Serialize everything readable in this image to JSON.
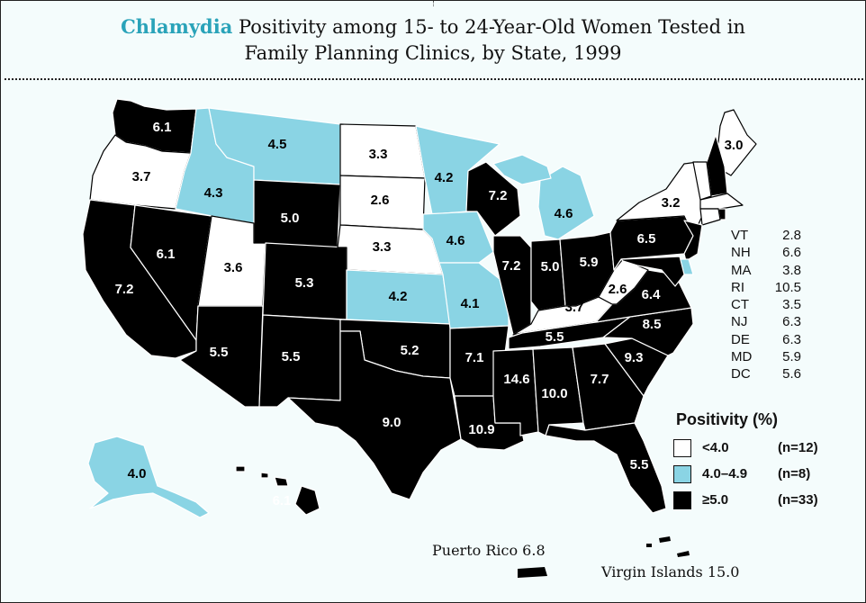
{
  "title": {
    "highlight": "Chlamydia",
    "line1_rest": " Positivity among 15- to 24-Year-Old Women Tested in",
    "line2": "Family Planning Clinics, by State, 1999"
  },
  "colors": {
    "low": "#ffffff",
    "mid": "#8ad4e4",
    "high": "#000000",
    "accent": "#2aa3b9",
    "background": "#f4fcfc"
  },
  "states": [
    {
      "id": "WA",
      "value": "6.1",
      "level": "high"
    },
    {
      "id": "OR",
      "value": "3.7",
      "level": "low"
    },
    {
      "id": "CA",
      "value": "7.2",
      "level": "high"
    },
    {
      "id": "NV",
      "value": "6.1",
      "level": "high"
    },
    {
      "id": "ID",
      "value": "4.3",
      "level": "mid"
    },
    {
      "id": "MT",
      "value": "4.5",
      "level": "mid"
    },
    {
      "id": "WY",
      "value": "5.0",
      "level": "high"
    },
    {
      "id": "UT",
      "value": "3.6",
      "level": "low"
    },
    {
      "id": "CO",
      "value": "5.3",
      "level": "high"
    },
    {
      "id": "AZ",
      "value": "5.5",
      "level": "high"
    },
    {
      "id": "NM",
      "value": "5.5",
      "level": "high"
    },
    {
      "id": "ND",
      "value": "3.3",
      "level": "low"
    },
    {
      "id": "SD",
      "value": "2.6",
      "level": "low"
    },
    {
      "id": "NE",
      "value": "3.3",
      "level": "low"
    },
    {
      "id": "KS",
      "value": "4.2",
      "level": "mid"
    },
    {
      "id": "OK",
      "value": "5.2",
      "level": "high"
    },
    {
      "id": "TX",
      "value": "9.0",
      "level": "high"
    },
    {
      "id": "MN",
      "value": "4.2",
      "level": "mid"
    },
    {
      "id": "IA",
      "value": "4.6",
      "level": "mid"
    },
    {
      "id": "MO",
      "value": "4.1",
      "level": "mid"
    },
    {
      "id": "AR",
      "value": "7.1",
      "level": "high"
    },
    {
      "id": "LA",
      "value": "10.9",
      "level": "high"
    },
    {
      "id": "WI",
      "value": "7.2",
      "level": "high"
    },
    {
      "id": "IL",
      "value": "7.2",
      "level": "high"
    },
    {
      "id": "MI",
      "value": "4.6",
      "level": "mid"
    },
    {
      "id": "IN",
      "value": "5.0",
      "level": "high"
    },
    {
      "id": "OH",
      "value": "5.9",
      "level": "high"
    },
    {
      "id": "KY",
      "value": "3.7",
      "level": "low"
    },
    {
      "id": "TN",
      "value": "5.5",
      "level": "high"
    },
    {
      "id": "MS",
      "value": "14.6",
      "level": "high"
    },
    {
      "id": "AL",
      "value": "10.0",
      "level": "high"
    },
    {
      "id": "GA",
      "value": "7.7",
      "level": "high"
    },
    {
      "id": "FL",
      "value": "5.5",
      "level": "high"
    },
    {
      "id": "SC",
      "value": "9.3",
      "level": "high"
    },
    {
      "id": "NC",
      "value": "8.5",
      "level": "high"
    },
    {
      "id": "VA",
      "value": "6.4",
      "level": "high"
    },
    {
      "id": "WV",
      "value": "2.6",
      "level": "low"
    },
    {
      "id": "PA",
      "value": "6.5",
      "level": "high"
    },
    {
      "id": "NY",
      "value": "3.2",
      "level": "low"
    },
    {
      "id": "ME",
      "value": "3.0",
      "level": "low"
    },
    {
      "id": "AK",
      "value": "4.0",
      "level": "mid"
    },
    {
      "id": "HI",
      "value": "6.1",
      "level": "high"
    }
  ],
  "small_states": [
    {
      "abbr": "VT",
      "value": "2.8"
    },
    {
      "abbr": "NH",
      "value": "6.6"
    },
    {
      "abbr": "MA",
      "value": "3.8"
    },
    {
      "abbr": "RI",
      "value": "10.5"
    },
    {
      "abbr": "CT",
      "value": "3.5"
    },
    {
      "abbr": "NJ",
      "value": "6.3"
    },
    {
      "abbr": "DE",
      "value": "6.3"
    },
    {
      "abbr": "MD",
      "value": "5.9"
    },
    {
      "abbr": "DC",
      "value": "5.6"
    }
  ],
  "legend": {
    "title": "Positivity (%)",
    "items": [
      {
        "label": "<4.0",
        "count": "(n=12)",
        "level": "low"
      },
      {
        "label": "4.0–4.9",
        "count": "(n=8)",
        "level": "mid"
      },
      {
        "label": "≥5.0",
        "count": "(n=33)",
        "level": "high"
      }
    ]
  },
  "territories": {
    "puerto_rico": "Puerto Rico 6.8",
    "virgin_islands": "Virgin Islands 15.0"
  }
}
